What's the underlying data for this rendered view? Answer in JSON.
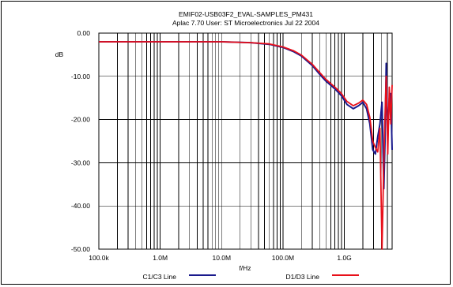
{
  "chart_data": {
    "type": "line",
    "title": "EMIF02-USB03F2_EVAL-SAMPLES_PM431",
    "subtitle": "Aplac  7.70  User:  ST  Microelectronics      Jul  22  2004",
    "xlabel": "f/Hz",
    "ylabel": "dB",
    "xscale": "log",
    "xlim_hz": [
      100000,
      6000000000
    ],
    "ylim": [
      -50,
      0
    ],
    "grid": true,
    "x_tick_labels": [
      "100.0k",
      "1.0M",
      "10.0M",
      "100.0M",
      "1.0G"
    ],
    "x_tick_values_hz": [
      100000,
      1000000,
      10000000,
      100000000,
      1000000000
    ],
    "y_tick_labels": [
      "0.00",
      "-10.00",
      "-20.00",
      "-30.00",
      "-40.00",
      "-50.00"
    ],
    "y_tick_values": [
      0,
      -10,
      -20,
      -30,
      -40,
      -50
    ],
    "legend_placement": "bottom",
    "series": [
      {
        "name": "C1/C3  Line",
        "color": "#1a1a8c",
        "x_hz": [
          100000,
          1000000,
          10000000,
          30000000,
          60000000,
          100000000,
          150000000,
          200000000,
          300000000,
          400000000,
          500000000,
          700000000,
          900000000,
          1100000000,
          1400000000,
          1700000000,
          2000000000,
          2300000000,
          2600000000,
          2900000000,
          3200000000,
          3500000000,
          3800000000,
          4100000000,
          4400000000,
          4600000000,
          4800000000,
          5100000000,
          5400000000,
          5700000000,
          6000000000
        ],
        "values": [
          -2.0,
          -2.0,
          -2.0,
          -2.2,
          -2.6,
          -3.3,
          -4.3,
          -5.3,
          -7.5,
          -9.6,
          -11.1,
          -12.9,
          -14.5,
          -16.5,
          -17.5,
          -16.8,
          -16.0,
          -17.5,
          -21.0,
          -27.0,
          -28.0,
          -24.0,
          -21.0,
          -16.0,
          -36.0,
          -25.0,
          -7.0,
          -24.0,
          -15.0,
          -14.0,
          -27.0
        ]
      },
      {
        "name": "D1/D3  Line",
        "color": "#e8101a",
        "x_hz": [
          100000,
          1000000,
          10000000,
          30000000,
          60000000,
          100000000,
          150000000,
          200000000,
          300000000,
          400000000,
          500000000,
          700000000,
          900000000,
          1100000000,
          1400000000,
          1700000000,
          2000000000,
          2300000000,
          2600000000,
          2900000000,
          3200000000,
          3500000000,
          3800000000,
          4100000000,
          4400000000,
          4600000000,
          4800000000,
          5100000000,
          5400000000,
          5700000000,
          6000000000
        ],
        "values": [
          -2.0,
          -2.0,
          -2.0,
          -2.2,
          -2.5,
          -3.2,
          -4.1,
          -5.1,
          -7.2,
          -9.2,
          -10.7,
          -12.5,
          -14.0,
          -15.8,
          -16.8,
          -16.2,
          -15.5,
          -16.5,
          -19.5,
          -25.0,
          -26.5,
          -27.5,
          -22.0,
          -50.0,
          -30.0,
          -19.0,
          -10.0,
          -28.0,
          -12.5,
          -21.0,
          -12.0
        ]
      }
    ]
  }
}
